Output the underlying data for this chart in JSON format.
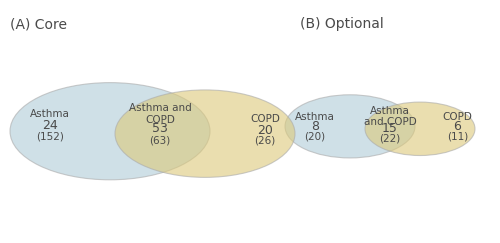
{
  "title_a": "(A) Core",
  "title_b": "(B) Optional",
  "title_fontsize": 10,
  "circle_blue_color": "#b0ccd8",
  "circle_yellow_color": "#dcc97a",
  "circle_blue_alpha": 0.6,
  "circle_yellow_alpha": 0.6,
  "core_asthma_label": "Asthma",
  "core_asthma_value": "24",
  "core_asthma_sub": "(152)",
  "core_copd_label": "COPD",
  "core_copd_value": "20",
  "core_copd_sub": "(26)",
  "core_both_label": "Asthma and\nCOPD",
  "core_both_value": "53",
  "core_both_sub": "(63)",
  "opt_asthma_label": "Asthma",
  "opt_asthma_value": "8",
  "opt_asthma_sub": "(20)",
  "opt_copd_label": "COPD",
  "opt_copd_value": "6",
  "opt_copd_sub": "(11)",
  "opt_both_label": "Asthma\nand COPD",
  "opt_both_value": "15",
  "opt_both_sub": "(22)",
  "text_color": "#4a4a4a",
  "label_fontsize": 7.5,
  "value_fontsize": 9,
  "sub_fontsize": 7.5
}
